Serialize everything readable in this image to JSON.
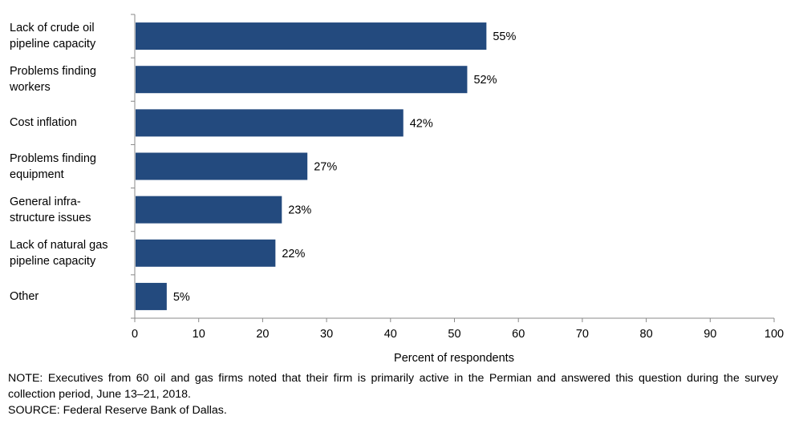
{
  "chart_data": {
    "type": "bar",
    "orientation": "horizontal",
    "categories": [
      "Lack of crude oil\npipeline capacity",
      "Problems  finding\nworkers",
      "Cost inflation",
      "Problems  finding\nequipment",
      "General infra-\nstructure  issues",
      "Lack of natural gas\npipeline capacity",
      "Other"
    ],
    "values": [
      55,
      52,
      42,
      27,
      23,
      22,
      5
    ],
    "data_labels": [
      "55%",
      "52%",
      "42%",
      "27%",
      "23%",
      "22%",
      "5%"
    ],
    "xlabel": "Percent of respondents",
    "xlim": [
      0,
      100
    ],
    "xticks": [
      0,
      10,
      20,
      30,
      40,
      50,
      60,
      70,
      80,
      90,
      100
    ],
    "grid": false,
    "legend": "none",
    "bar_color": "#234a7e"
  },
  "notes": {
    "note": "NOTE:  Executives  from 60 oil and gas firms  noted  that  their firm is primarily  active  in the Permian  and  answered  this question during the survey collection period, June 13–21, 2018.",
    "source": "SOURCE:  Federal Reserve  Bank of Dallas."
  }
}
